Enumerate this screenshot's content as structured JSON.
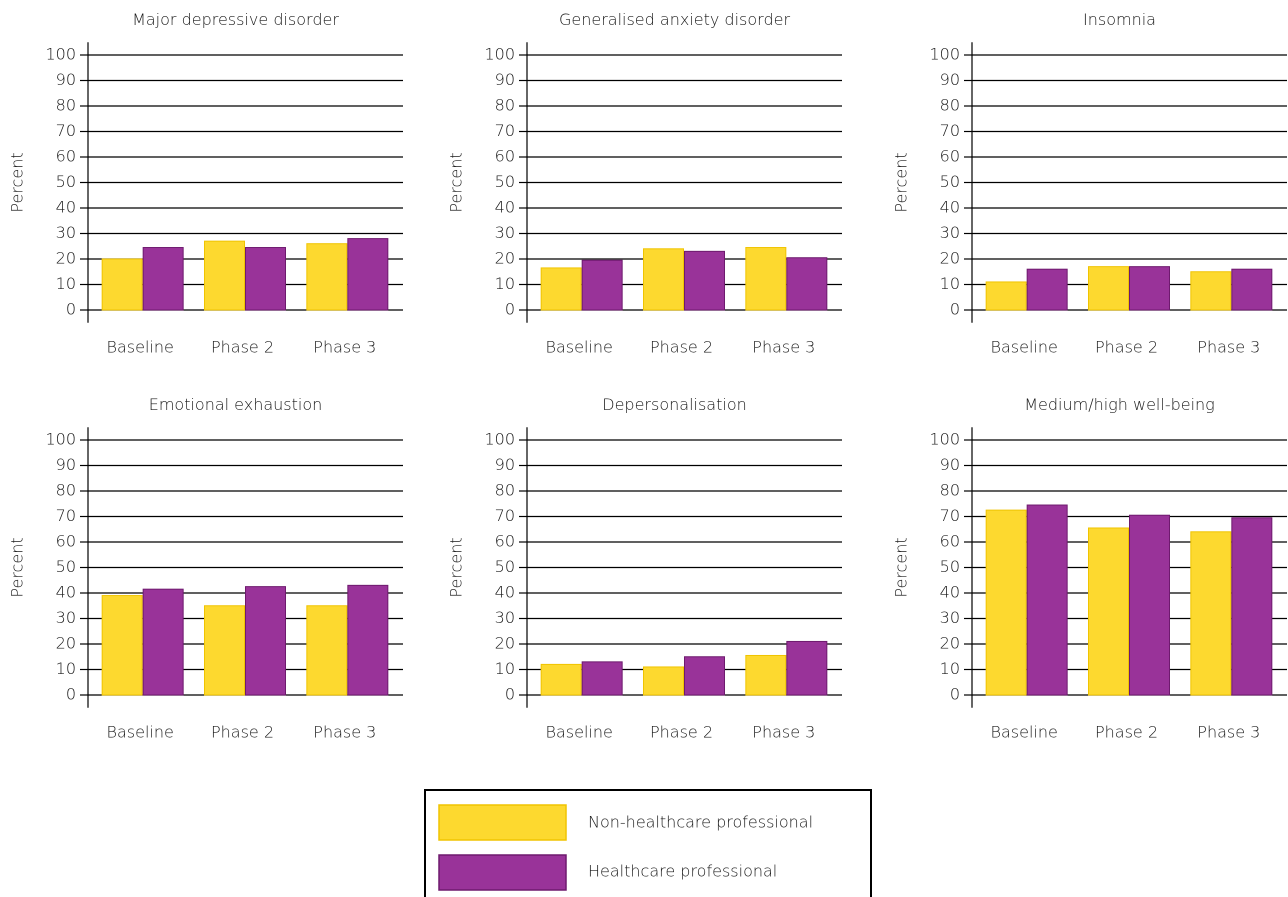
{
  "chart_data": [
    {
      "type": "bar",
      "title": "Major depressive disorder",
      "ylabel": "Percent",
      "categories": [
        "Baseline",
        "Phase 2",
        "Phase 3"
      ],
      "series": [
        {
          "name": "Non-healthcare professional",
          "color": "#fdd92f",
          "values": [
            20,
            27,
            26
          ]
        },
        {
          "name": "Healthcare professional",
          "color": "#993399",
          "values": [
            24.5,
            24.5,
            28
          ]
        }
      ],
      "ylim": [
        -5,
        105
      ],
      "yticks": [
        0,
        10,
        20,
        30,
        40,
        50,
        60,
        70,
        80,
        90,
        100
      ],
      "grid": true
    },
    {
      "type": "bar",
      "title": "Generalised anxiety disorder",
      "ylabel": "Percent",
      "categories": [
        "Baseline",
        "Phase 2",
        "Phase 3"
      ],
      "series": [
        {
          "name": "Non-healthcare professional",
          "color": "#fdd92f",
          "values": [
            16.5,
            24,
            24.5
          ]
        },
        {
          "name": "Healthcare professional",
          "color": "#993399",
          "values": [
            19.5,
            23,
            20.5
          ]
        }
      ],
      "ylim": [
        -5,
        105
      ],
      "yticks": [
        0,
        10,
        20,
        30,
        40,
        50,
        60,
        70,
        80,
        90,
        100
      ],
      "grid": true
    },
    {
      "type": "bar",
      "title": "Insomnia",
      "ylabel": "Percent",
      "categories": [
        "Baseline",
        "Phase 2",
        "Phase 3"
      ],
      "series": [
        {
          "name": "Non-healthcare professional",
          "color": "#fdd92f",
          "values": [
            11,
            17,
            15
          ]
        },
        {
          "name": "Healthcare professional",
          "color": "#993399",
          "values": [
            16,
            17,
            16
          ]
        }
      ],
      "ylim": [
        -5,
        105
      ],
      "yticks": [
        0,
        10,
        20,
        30,
        40,
        50,
        60,
        70,
        80,
        90,
        100
      ],
      "grid": true
    },
    {
      "type": "bar",
      "title": "Emotional exhaustion",
      "ylabel": "Percent",
      "categories": [
        "Baseline",
        "Phase 2",
        "Phase 3"
      ],
      "series": [
        {
          "name": "Non-healthcare professional",
          "color": "#fdd92f",
          "values": [
            39,
            35,
            35
          ]
        },
        {
          "name": "Healthcare professional",
          "color": "#993399",
          "values": [
            41.5,
            42.5,
            43
          ]
        }
      ],
      "ylim": [
        -5,
        105
      ],
      "yticks": [
        0,
        10,
        20,
        30,
        40,
        50,
        60,
        70,
        80,
        90,
        100
      ],
      "grid": true
    },
    {
      "type": "bar",
      "title": "Depersonalisation",
      "ylabel": "Percent",
      "categories": [
        "Baseline",
        "Phase 2",
        "Phase 3"
      ],
      "series": [
        {
          "name": "Non-healthcare professional",
          "color": "#fdd92f",
          "values": [
            12,
            11,
            15.5
          ]
        },
        {
          "name": "Healthcare professional",
          "color": "#993399",
          "values": [
            13,
            15,
            21
          ]
        }
      ],
      "ylim": [
        -5,
        105
      ],
      "yticks": [
        0,
        10,
        20,
        30,
        40,
        50,
        60,
        70,
        80,
        90,
        100
      ],
      "grid": true
    },
    {
      "type": "bar",
      "title": "Medium/high well-being",
      "ylabel": "Percent",
      "categories": [
        "Baseline",
        "Phase 2",
        "Phase 3"
      ],
      "series": [
        {
          "name": "Non-healthcare professional",
          "color": "#fdd92f",
          "values": [
            72.5,
            65.5,
            64
          ]
        },
        {
          "name": "Healthcare professional",
          "color": "#993399",
          "values": [
            74.5,
            70.5,
            69.5
          ]
        }
      ],
      "ylim": [
        -5,
        105
      ],
      "yticks": [
        0,
        10,
        20,
        30,
        40,
        50,
        60,
        70,
        80,
        90,
        100
      ],
      "grid": true
    }
  ]
}
